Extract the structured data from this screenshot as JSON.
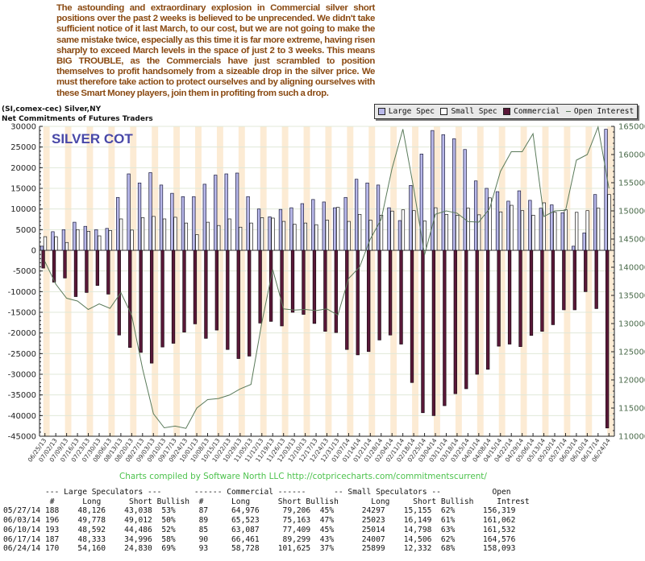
{
  "commentary": {
    "before_bold": "The astounding and extraordinary explosion in Commercial silver short positions over the past 2 weeks is believed to be unprecended. We didn't take sufficient notice of it last March, to our cost, but we are not going to make the same mistake twice, especially as this time it is far more extreme, having risen sharply to exceed March levels in the space of just 2 to 3 weeks. This means ",
    "bold": "BIG TROUBLE",
    "after_bold": ", as the Commercials have just scrambled to position themselves to profit handsomely from a sizeable drop in the silver price. We must therefore take action to protect ourselves and by aligning ourselves with these Smart Money players, join them in profiting from such a drop."
  },
  "header": {
    "line1": "(SI,comex-cec) Silver,NY",
    "line2": "Net Commitments of Futures Traders"
  },
  "legend": [
    {
      "label": "Large Spec",
      "color": "#b8b8ea"
    },
    {
      "label": "Small Spec",
      "color": "#ffffff"
    },
    {
      "label": "Commercial",
      "color": "#5a1838"
    },
    {
      "label": "Open Interest",
      "color": "#5a7a5a"
    }
  ],
  "credits": "Charts compiled by Software North LLC   http://cotpricecharts.com/commitmentscurrent/",
  "chart_data": {
    "type": "bar",
    "title": "SILVER COT",
    "xlabel": "",
    "ylabel": "Net Commitments",
    "ylim": [
      -45000,
      30000
    ],
    "y_ticks": [
      30000,
      25000,
      20000,
      15000,
      10000,
      5000,
      0,
      -5000,
      -10000,
      -15000,
      -20000,
      -25000,
      -30000,
      -35000,
      -40000,
      -45000
    ],
    "y2lim": [
      110000,
      165000
    ],
    "y2_ticks": [
      165000,
      160000,
      155000,
      150000,
      145000,
      140000,
      135000,
      130000,
      125000,
      120000,
      115000,
      110000
    ],
    "grid": true,
    "legend_position": "top-right",
    "categories": [
      "06/25/13",
      "07/02/13",
      "07/09/13",
      "07/16/13",
      "07/23/13",
      "07/30/13",
      "08/06/13",
      "08/13/13",
      "08/20/13",
      "08/27/13",
      "09/03/13",
      "09/10/13",
      "09/17/13",
      "09/24/13",
      "10/01/13",
      "10/08/13",
      "10/15/13",
      "10/22/13",
      "10/29/13",
      "11/05/13",
      "11/12/13",
      "11/19/13",
      "11/26/13",
      "12/03/13",
      "12/10/13",
      "12/17/13",
      "12/24/13",
      "12/31/13",
      "01/07/14",
      "01/14/14",
      "01/21/14",
      "01/28/14",
      "02/04/14",
      "02/11/14",
      "02/18/14",
      "02/25/14",
      "03/04/14",
      "03/11/14",
      "03/18/14",
      "03/25/14",
      "04/01/14",
      "04/08/14",
      "04/15/14",
      "04/22/14",
      "04/29/14",
      "05/06/14",
      "05/13/14",
      "05/20/14",
      "05/27/14",
      "06/03/14",
      "06/10/14",
      "06/17/14",
      "06/24/14"
    ],
    "series": [
      {
        "name": "Large Spec",
        "axis": "left",
        "values": [
          1000,
          4500,
          5000,
          6800,
          5800,
          5000,
          5300,
          12800,
          18500,
          16300,
          18800,
          15800,
          13800,
          13000,
          13000,
          16000,
          18200,
          18500,
          18700,
          13000,
          10000,
          8100,
          9900,
          10300,
          11300,
          12300,
          11700,
          10300,
          12800,
          17200,
          16300,
          15800,
          10300,
          7200,
          15700,
          23300,
          29000,
          28000,
          27000,
          24400,
          16800,
          15000,
          14200,
          11900,
          14400,
          12100,
          10200,
          11000,
          9100,
          1000,
          4200,
          13500,
          29300
        ]
      },
      {
        "name": "Small Spec",
        "axis": "left",
        "values": [
          3300,
          3300,
          1900,
          5000,
          4600,
          3500,
          4800,
          7600,
          4900,
          7900,
          8200,
          7600,
          8000,
          6600,
          3800,
          6800,
          6000,
          7600,
          5600,
          6600,
          7900,
          7800,
          7000,
          6300,
          6600,
          6200,
          7300,
          10400,
          7000,
          8700,
          7300,
          8500,
          9500,
          9800,
          9600,
          7100,
          10300,
          8700,
          8500,
          10200,
          8600,
          12700,
          9300,
          10900,
          9600,
          8500,
          11500,
          9200,
          9800,
          9200,
          9600,
          10200,
          13500
        ]
      },
      {
        "name": "Commercial",
        "axis": "left",
        "values": [
          -4300,
          -7700,
          -6700,
          -11200,
          -10200,
          -8500,
          -10600,
          -20500,
          -23500,
          -24700,
          -27300,
          -23400,
          -22500,
          -19800,
          -17800,
          -21300,
          -19300,
          -24000,
          -26200,
          -25600,
          -17600,
          -17200,
          -18300,
          -15000,
          -15500,
          -17700,
          -19600,
          -19900,
          -24000,
          -25300,
          -24500,
          -21700,
          -20500,
          -22700,
          -32000,
          -39300,
          -40000,
          -37600,
          -34700,
          -33500,
          -30000,
          -28800,
          -23200,
          -22700,
          -23300,
          -20600,
          -19600,
          -18000,
          -14400,
          -14400,
          -10000,
          -14100,
          -43000
        ]
      },
      {
        "name": "Open Interest",
        "axis": "right",
        "type": "line",
        "values": [
          141000,
          137000,
          134500,
          134000,
          132500,
          133500,
          132700,
          135500,
          131500,
          122000,
          114000,
          111500,
          111800,
          111400,
          115000,
          116500,
          116700,
          117300,
          118400,
          119200,
          130200,
          139600,
          132600,
          132400,
          132500,
          132300,
          132600,
          131500,
          138000,
          140000,
          145000,
          148500,
          157500,
          164500,
          154000,
          142200,
          149400,
          150000,
          149600,
          148100,
          148000,
          150400,
          157000,
          160500,
          160500,
          163700,
          149000,
          150000,
          150100,
          159000,
          160000,
          164900,
          154000
        ]
      }
    ]
  },
  "table": {
    "group_headers": {
      "large": "--- Large Speculators ---",
      "commercial": "------ Commercial ------",
      "small": "-- Small Speculators --",
      "open": "Open"
    },
    "columns": {
      "num": "#",
      "long": "Long",
      "short": "Short",
      "bullish": "Bullish",
      "interest": "Intrest"
    },
    "rows": [
      {
        "date": "05/27/14",
        "ls_num": "188",
        "ls_long": "48,126",
        "ls_short": "43,038",
        "ls_bull": "53%",
        "c_num": "87",
        "c_long": "64,976",
        "c_short": "79,206",
        "c_bull": "45%",
        "ss_long": "24297",
        "ss_short": "15,155",
        "ss_bull": "62%",
        "oi": "156,319"
      },
      {
        "date": "06/03/14",
        "ls_num": "196",
        "ls_long": "49,778",
        "ls_short": "49,012",
        "ls_bull": "50%",
        "c_num": "89",
        "c_long": "65,523",
        "c_short": "75,163",
        "c_bull": "47%",
        "ss_long": "25023",
        "ss_short": "16,149",
        "ss_bull": "61%",
        "oi": "161,062"
      },
      {
        "date": "06/10/14",
        "ls_num": "193",
        "ls_long": "48,592",
        "ls_short": "44,486",
        "ls_bull": "52%",
        "c_num": "85",
        "c_long": "63,087",
        "c_short": "77,409",
        "c_bull": "45%",
        "ss_long": "25014",
        "ss_short": "14,798",
        "ss_bull": "63%",
        "oi": "161,532"
      },
      {
        "date": "06/17/14",
        "ls_num": "187",
        "ls_long": "48,333",
        "ls_short": "34,996",
        "ls_bull": "58%",
        "c_num": "90",
        "c_long": "66,461",
        "c_short": "89,299",
        "c_bull": "43%",
        "ss_long": "24007",
        "ss_short": "14,506",
        "ss_bull": "62%",
        "oi": "164,576"
      },
      {
        "date": "06/24/14",
        "ls_num": "170",
        "ls_long": "54,160",
        "ls_short": "24,830",
        "ls_bull": "69%",
        "c_num": "93",
        "c_long": "58,728",
        "c_short": "101,625",
        "c_bull": "37%",
        "ss_long": "25899",
        "ss_short": "12,332",
        "ss_bull": "68%",
        "oi": "158,093"
      }
    ]
  }
}
